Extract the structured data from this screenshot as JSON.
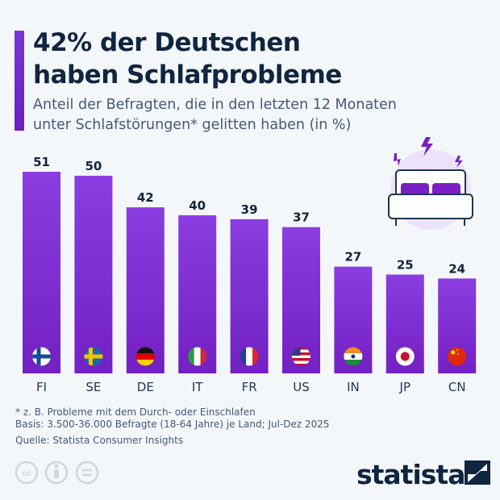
{
  "header": {
    "title_line1": "42% der Deutschen",
    "title_line2": "haben Schlafprobleme",
    "subtitle_line1": "Anteil der Befragten, die in den letzten 12 Monaten",
    "subtitle_line2": "unter Schlafstörungen* gelitten haben (in %)"
  },
  "chart_data": {
    "type": "bar",
    "categories": [
      "FI",
      "SE",
      "DE",
      "IT",
      "FR",
      "US",
      "IN",
      "JP",
      "CN"
    ],
    "values": [
      51,
      50,
      42,
      40,
      39,
      37,
      27,
      25,
      24
    ],
    "ylim": [
      0,
      51
    ],
    "grid": false,
    "bar_color": "#7a2fd0"
  },
  "footer": {
    "note": "* z. B. Probleme mit dem Durch- oder Einschlafen",
    "basis": "Basis: 3.500-36.000 Befragte (18-64 Jahre) je Land; Jul-Dez 2025",
    "source": "Quelle: Statista Consumer Insights",
    "brand": "statista"
  },
  "icons": [
    "bed-icon",
    "lightning-icon",
    "cc-icon",
    "by-icon",
    "nd-icon",
    "statista-logo-icon"
  ]
}
